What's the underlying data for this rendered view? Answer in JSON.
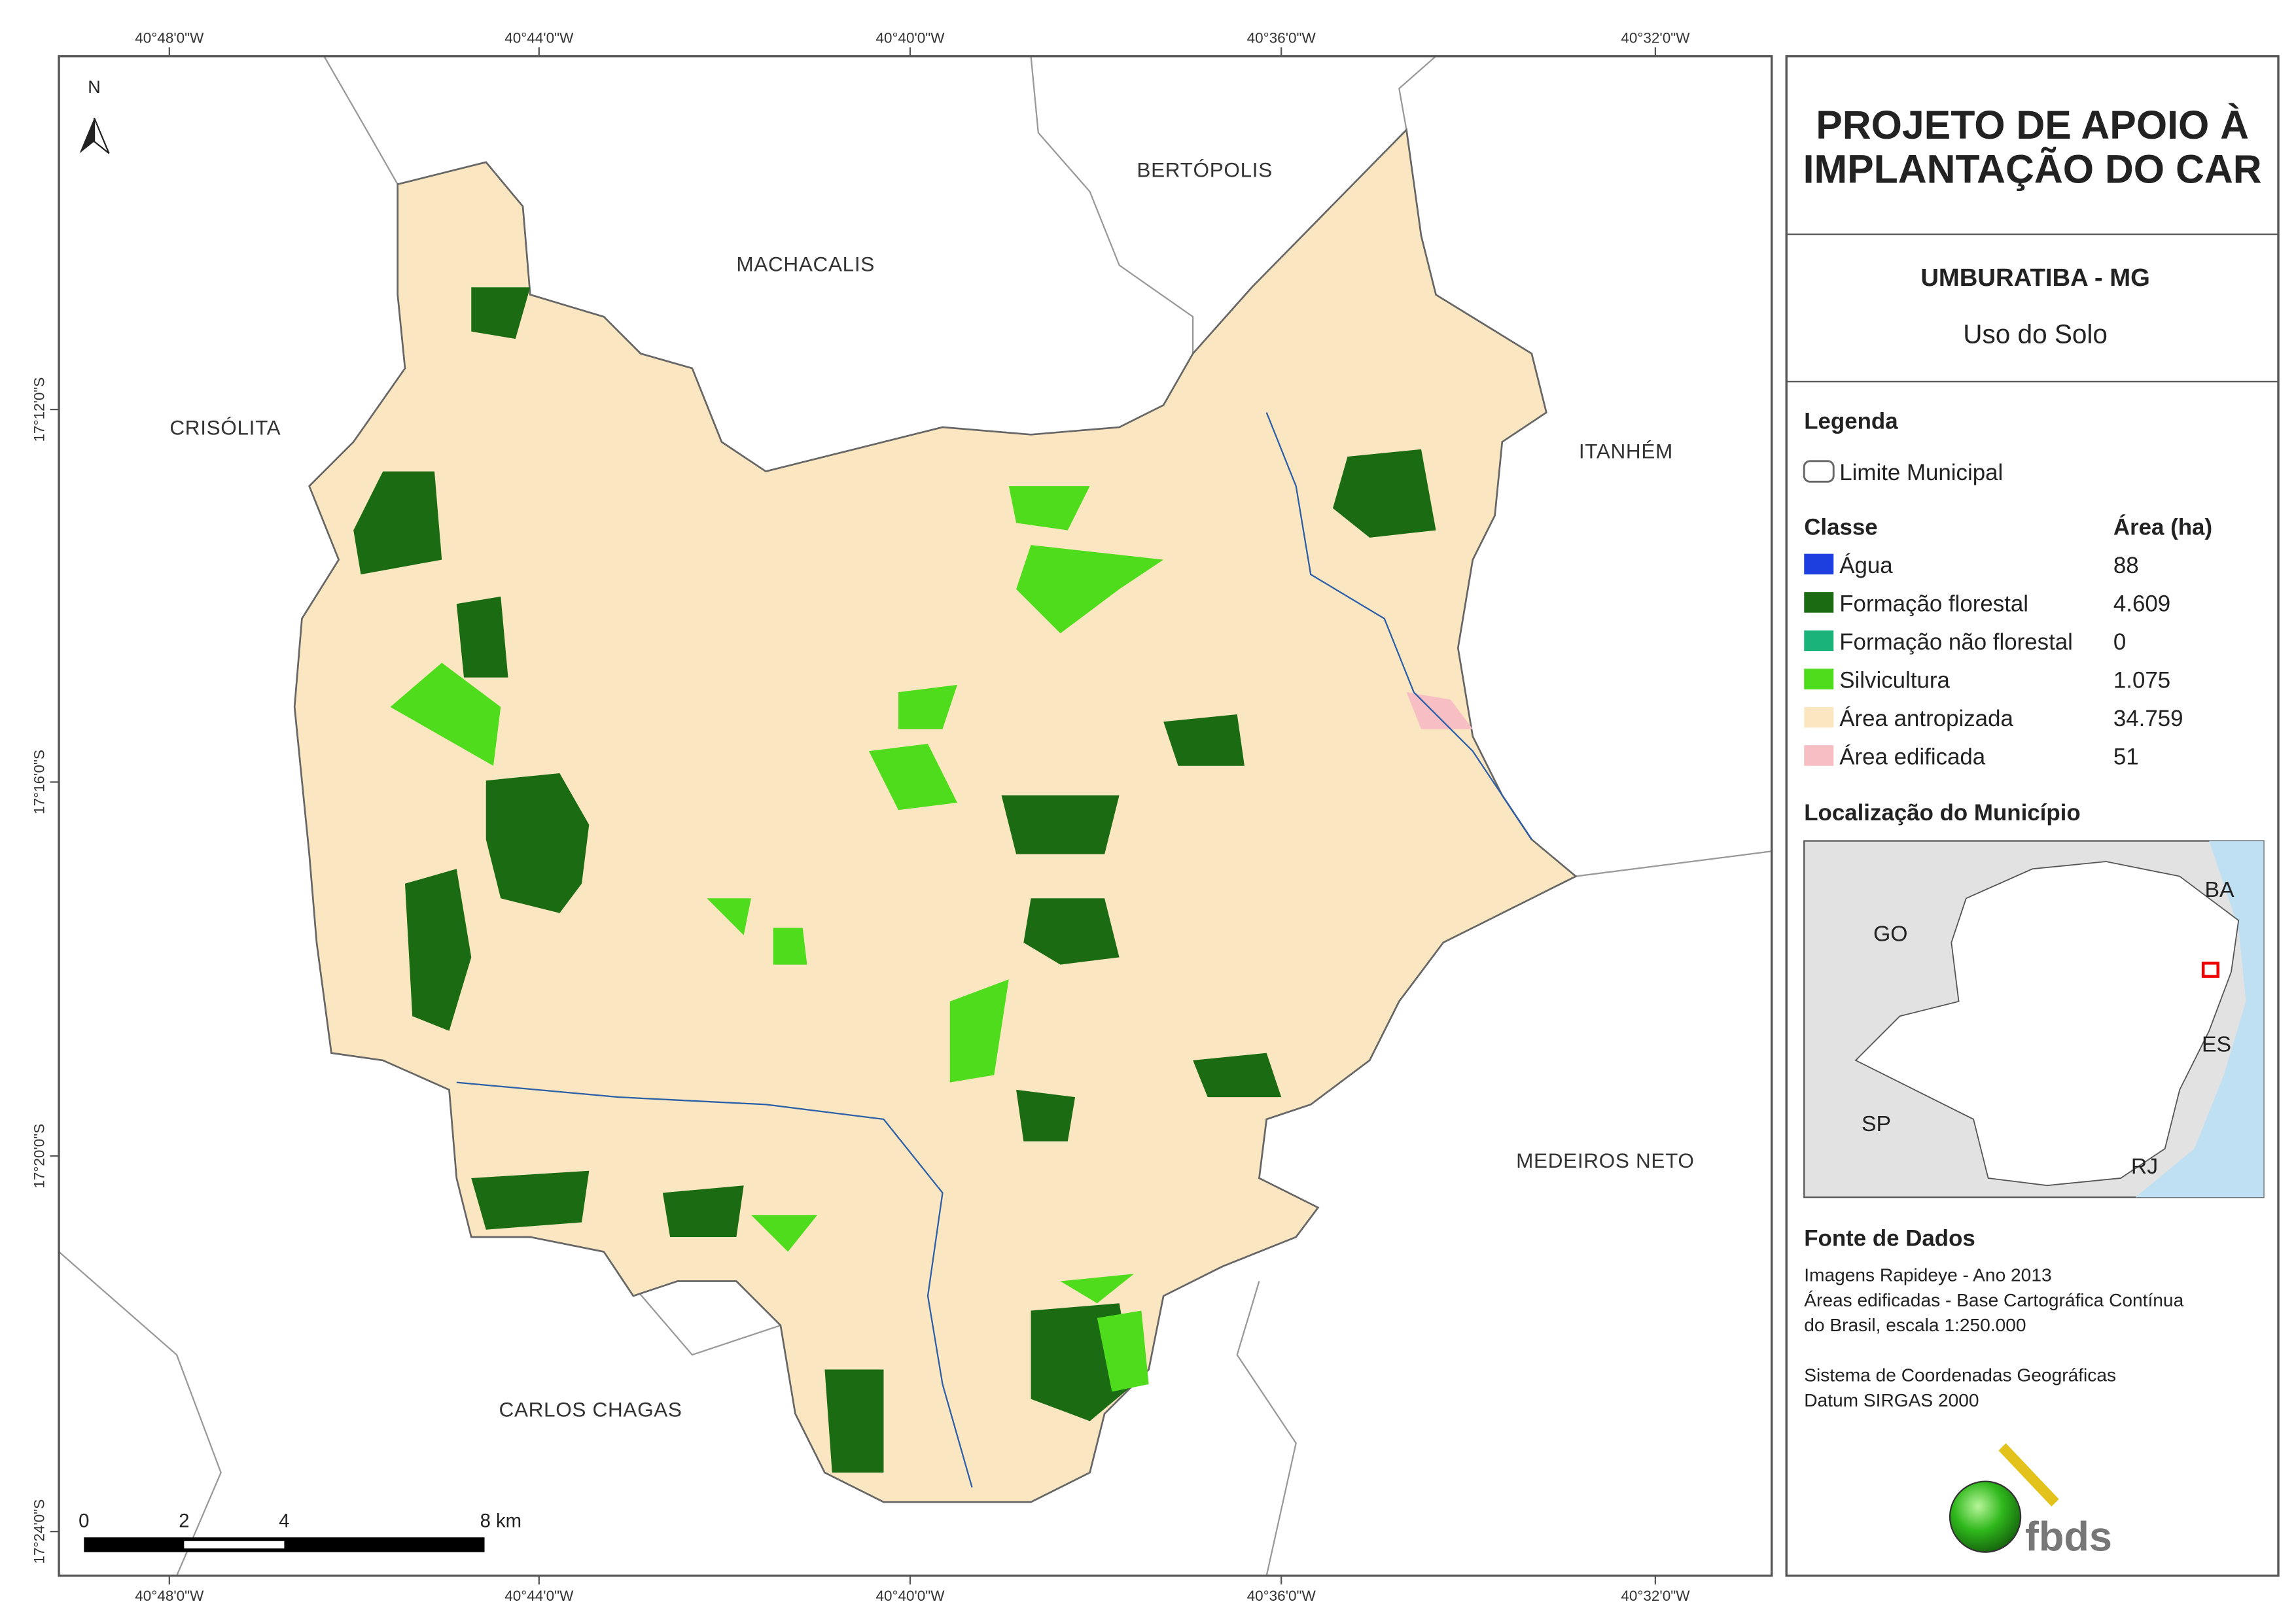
{
  "map": {
    "lon_labels": [
      "40°48'0\"W",
      "40°44'0\"W",
      "40°40'0\"W",
      "40°36'0\"W",
      "40°32'0\"W"
    ],
    "lat_labels": [
      "17°12'0\"S",
      "17°16'0\"S",
      "17°20'0\"S",
      "17°24'0\"S"
    ],
    "north": "N",
    "places": [
      "BERTÓPOLIS",
      "MACHACALIS",
      "CRISÓLITA",
      "ITANHÉM",
      "MEDEIROS NETO",
      "CARLOS CHAGAS"
    ],
    "scale_labels": [
      "0",
      "2",
      "4",
      "8 km"
    ]
  },
  "panel": {
    "title_lines": [
      "PROJETO DE APOIO À",
      "IMPLANTAÇÃO DO CAR"
    ],
    "municipality": "UMBURATIBA - MG",
    "subtitle": "Uso do Solo",
    "legend": {
      "title": "Legenda",
      "boundary": "Limite Municipal",
      "class_header": "Classe",
      "area_header": "Área (ha)",
      "rows": [
        {
          "label": "Água",
          "area": "88",
          "color": "#1d3fe0"
        },
        {
          "label": "Formação florestal",
          "area": "4.609",
          "color": "#1a6b12"
        },
        {
          "label": "Formação não florestal",
          "area": "0",
          "color": "#1ab37a"
        },
        {
          "label": "Silvicultura",
          "area": "1.075",
          "color": "#4fdc1c"
        },
        {
          "label": "Área antropizada",
          "area": "34.759",
          "color": "#fbe6c2"
        },
        {
          "label": "Área edificada",
          "area": "51",
          "color": "#f7bfc4"
        }
      ]
    },
    "location": {
      "title": "Localização do Município",
      "states": [
        "BA",
        "GO",
        "ES",
        "SP",
        "RJ"
      ]
    },
    "sources": {
      "title": "Fonte de Dados",
      "lines": [
        "Imagens Rapideye - Ano 2013",
        "Áreas edificadas - Base Cartográfica Contínua",
        "do Brasil, escala 1:250.000",
        "Sistema de Coordenadas Geográficas",
        "Datum SIRGAS 2000"
      ]
    },
    "logo": "fbds"
  }
}
